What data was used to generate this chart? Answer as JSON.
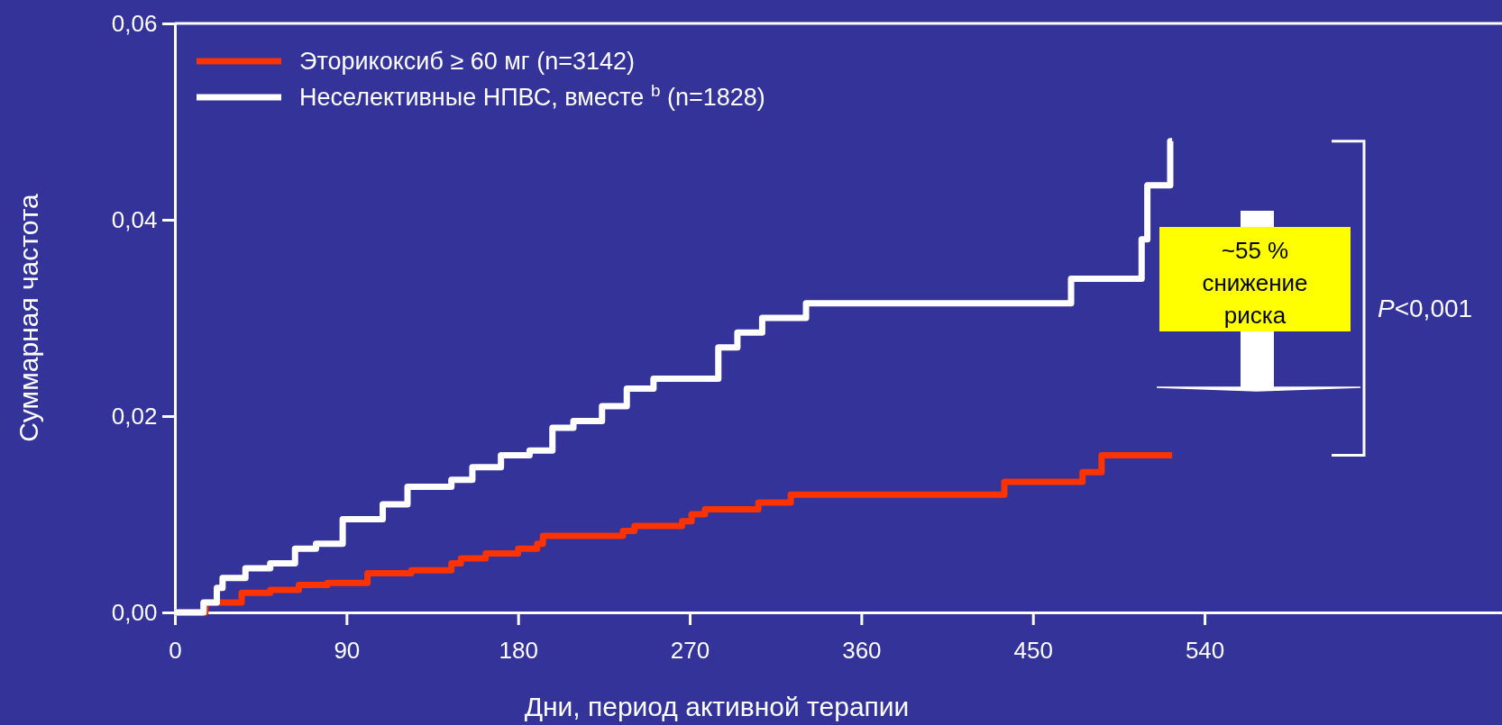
{
  "chart_data": {
    "type": "step",
    "xlabel": "Дни, период активной терапии",
    "ylabel": "Суммарная частота",
    "xlim": [
      0,
      696
    ],
    "ylim": [
      0,
      0.06
    ],
    "xticks": [
      0,
      90,
      180,
      270,
      360,
      450,
      540
    ],
    "yticks": [
      {
        "value": 0,
        "label": "0,00"
      },
      {
        "value": 0.02,
        "label": "0,02"
      },
      {
        "value": 0.04,
        "label": "0,04"
      },
      {
        "value": 0.06,
        "label": "0,06"
      }
    ],
    "legend": "top left",
    "grid": false,
    "annotations": [
      "~55 % снижение риска",
      "P<0,001"
    ],
    "series": [
      {
        "name": "Эторикоксиб ≥ 60 мг (n=3142)",
        "color": "#ff3300",
        "x": [
          0,
          16,
          35,
          50,
          65,
          80,
          101,
          124,
          145,
          150,
          163,
          180,
          190,
          193,
          235,
          241,
          266,
          271,
          278,
          306,
          323,
          435,
          476,
          486,
          523
        ],
        "values": [
          0,
          0.001,
          0.002,
          0.0023,
          0.0028,
          0.003,
          0.004,
          0.0043,
          0.005,
          0.0055,
          0.006,
          0.0065,
          0.007,
          0.0078,
          0.0083,
          0.0088,
          0.0093,
          0.01,
          0.0105,
          0.0112,
          0.012,
          0.0133,
          0.0143,
          0.016,
          0.016
        ]
      },
      {
        "name": "Неселективные НПВС, вместе $^{b}$ (n=1828)",
        "color": "#ffffff",
        "x": [
          0,
          8,
          15,
          22,
          25,
          37,
          50,
          63,
          74,
          88,
          109,
          122,
          145,
          156,
          171,
          186,
          198,
          209,
          224,
          237,
          251,
          285,
          295,
          308,
          331,
          470,
          507,
          510,
          522,
          523
        ],
        "values": [
          0,
          0,
          0.001,
          0.0025,
          0.0035,
          0.0045,
          0.005,
          0.0065,
          0.007,
          0.0095,
          0.011,
          0.0128,
          0.0135,
          0.0148,
          0.016,
          0.0165,
          0.0188,
          0.0195,
          0.021,
          0.0228,
          0.0238,
          0.027,
          0.0285,
          0.03,
          0.0315,
          0.034,
          0.038,
          0.0435,
          0.048,
          0.048
        ]
      }
    ]
  }
}
